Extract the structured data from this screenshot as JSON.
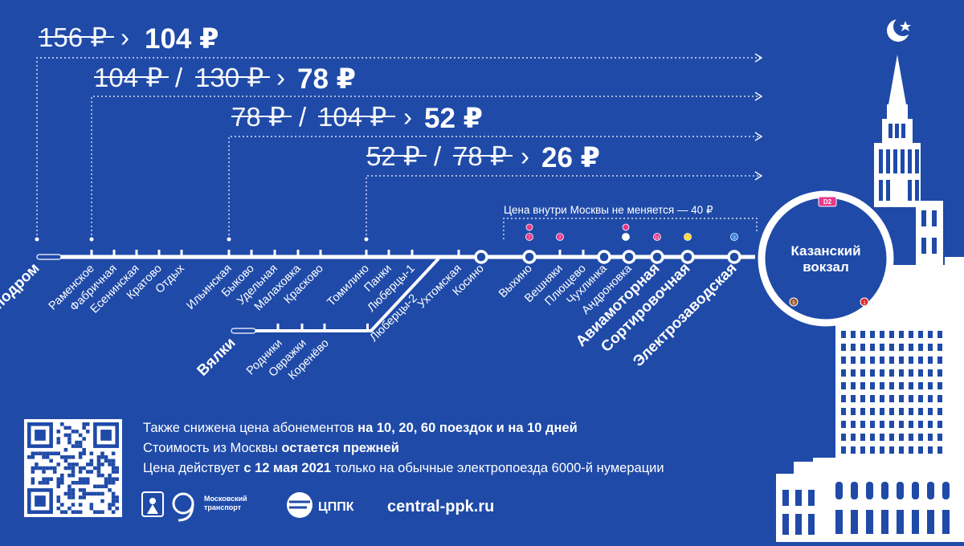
{
  "fares": [
    {
      "old": [
        "156 ₽"
      ],
      "new": "104 ₽"
    },
    {
      "old": [
        "104 ₽",
        "130 ₽"
      ],
      "new": "78 ₽"
    },
    {
      "old": [
        "78 ₽",
        "104 ₽"
      ],
      "new": "52 ₽"
    },
    {
      "old": [
        "52 ₽",
        "78 ₽"
      ],
      "new": "26 ₽"
    }
  ],
  "moscow_note": "Цена внутри Москвы не меняется — 40 ₽",
  "terminal": {
    "line1": "Казанский",
    "line2": "вокзал",
    "badge": "D2",
    "badge_left": "5",
    "badge_right": "1"
  },
  "main_line": {
    "stations": [
      "Ипподром",
      "Раменское",
      "Фабричная",
      "Есенинская",
      "Кратово",
      "Отдых",
      "Ильинская",
      "Быково",
      "Удельная",
      "Малаховка",
      "Красково",
      "Томилино",
      "Панки",
      "Люберцы-1",
      "Ухтомская",
      "Косино",
      "Выхино",
      "Вешняки",
      "Плющево",
      "Чухлинка",
      "Андроновка",
      "Авиамоторная",
      "Сортировочная",
      "Электрозаводская"
    ]
  },
  "branch_line": {
    "stations": [
      "Вялки",
      "Родники",
      "Овражки",
      "Коренёво",
      "Люберцы-2"
    ]
  },
  "transfer_badges": [
    "7",
    "7",
    "8",
    "11",
    "8",
    "3"
  ],
  "info": {
    "line1_a": "Также снижена цена абонементов ",
    "line1_b": "на 10, 20, 60 поездок и на 10 дней",
    "line2_a": "Стоимость из Москвы ",
    "line2_b": "остается прежней",
    "line3_a": "Цена действует ",
    "line3_b": "с 12 мая 2021",
    "line3_c": " только на обычные электропоезда 6000-й нумерации"
  },
  "logos": {
    "mt_line1": "Московский",
    "mt_line2": "транспорт",
    "cppk": "ЦППК"
  },
  "website": "central-ppk.ru",
  "colors": {
    "background": "#1f4aa8",
    "line": "#ffffff",
    "accent_pink": "#e8398a",
    "accent_orange": "#f08a1c",
    "accent_red": "#e22b2b",
    "accent_yellow": "#ffd21f",
    "accent_blue": "#2a7de1",
    "accent_brown": "#9b5a2c"
  }
}
